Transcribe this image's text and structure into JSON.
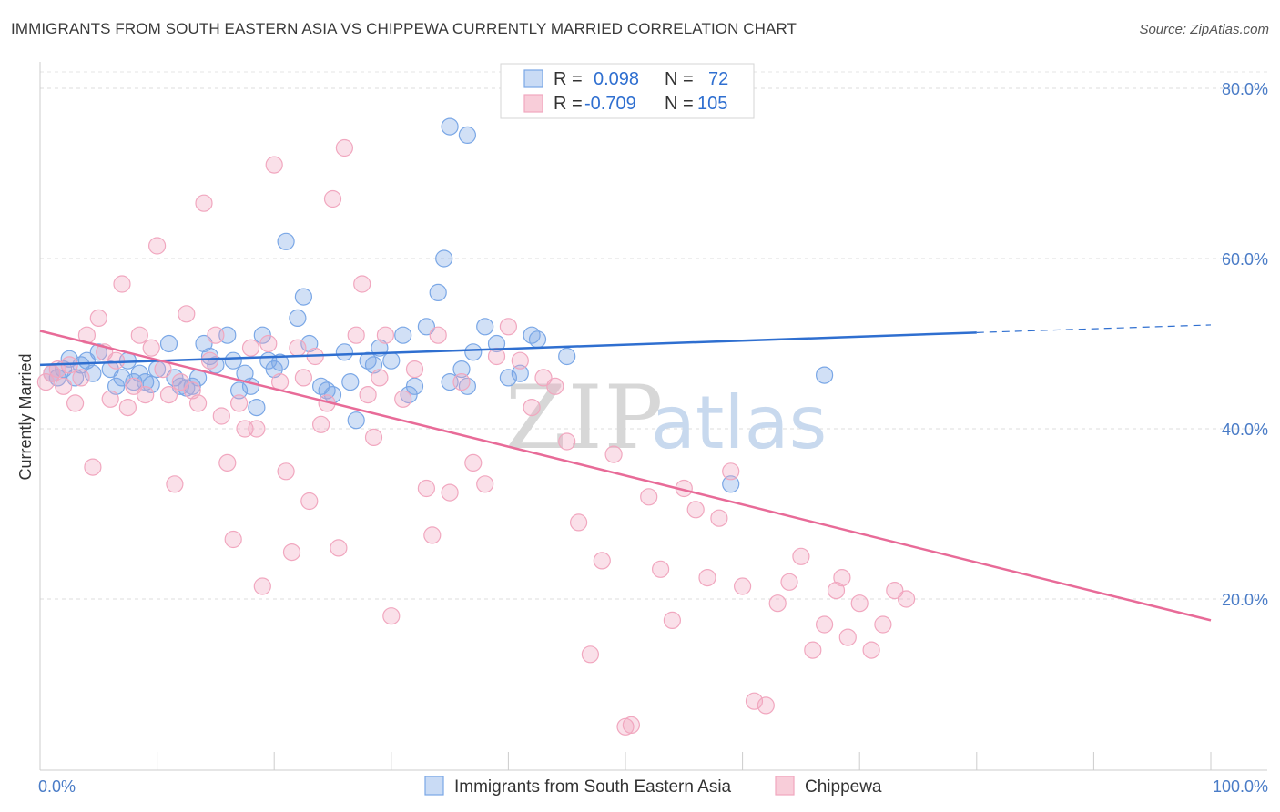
{
  "title": "IMMIGRANTS FROM SOUTH EASTERN ASIA VS CHIPPEWA CURRENTLY MARRIED CORRELATION CHART",
  "source": "Source: ZipAtlas.com",
  "watermark": {
    "zip": "ZIP",
    "atlas": "atlas"
  },
  "legend": {
    "r_label": "R =",
    "n_label": "N =",
    "rows": [
      {
        "r": "0.098",
        "n": "72"
      },
      {
        "r": "-0.709",
        "n": "105"
      }
    ]
  },
  "chart_data": {
    "type": "scatter",
    "title": "IMMIGRANTS FROM SOUTH EASTERN ASIA VS CHIPPEWA CURRENTLY MARRIED CORRELATION CHART",
    "xlabel": "",
    "ylabel": "Currently Married",
    "xlim": [
      0,
      100
    ],
    "ylim": [
      0,
      85
    ],
    "y_ticks": [
      20,
      40,
      60,
      80
    ],
    "y_tick_labels": [
      "20.0%",
      "40.0%",
      "60.0%",
      "80.0%"
    ],
    "x_tick_labels": [
      "0.0%",
      "100.0%"
    ],
    "grid": true,
    "legend_placement": "top-center",
    "series": [
      {
        "name": "Immigrants from South Eastern Asia",
        "color": "#7aa7e6",
        "line_color": "#2f6fd0",
        "r": 0.098,
        "n": 72,
        "trend": {
          "x0": 0,
          "y0": 47.5,
          "x1": 80,
          "y1": 51.3,
          "dashed_to_x": 100,
          "dashed_to_y": 52.2
        },
        "points": [
          [
            1,
            46.5
          ],
          [
            1.5,
            46
          ],
          [
            2,
            47
          ],
          [
            2.5,
            48.2
          ],
          [
            3,
            46
          ],
          [
            3.5,
            47.5
          ],
          [
            4,
            48
          ],
          [
            4.5,
            46.5
          ],
          [
            5,
            49
          ],
          [
            6,
            47
          ],
          [
            6.5,
            45
          ],
          [
            7,
            46
          ],
          [
            7.5,
            48
          ],
          [
            8,
            45.5
          ],
          [
            8.5,
            46.5
          ],
          [
            9,
            45.5
          ],
          [
            9.5,
            45.2
          ],
          [
            10,
            47
          ],
          [
            11,
            50
          ],
          [
            11.5,
            46
          ],
          [
            12,
            45
          ],
          [
            12.5,
            44.8
          ],
          [
            13,
            45
          ],
          [
            13.5,
            46
          ],
          [
            14,
            50
          ],
          [
            14.5,
            48.5
          ],
          [
            15,
            47.5
          ],
          [
            16,
            51
          ],
          [
            16.5,
            48
          ],
          [
            17,
            44.5
          ],
          [
            17.5,
            46.5
          ],
          [
            18,
            45
          ],
          [
            18.5,
            42.5
          ],
          [
            19,
            51
          ],
          [
            19.5,
            48
          ],
          [
            20,
            47
          ],
          [
            20.5,
            47.8
          ],
          [
            21,
            62
          ],
          [
            22,
            53
          ],
          [
            22.5,
            55.5
          ],
          [
            23,
            50
          ],
          [
            24,
            45
          ],
          [
            24.5,
            44.5
          ],
          [
            25,
            44
          ],
          [
            26,
            49
          ],
          [
            26.5,
            45.5
          ],
          [
            27,
            41
          ],
          [
            28,
            48
          ],
          [
            28.5,
            47.5
          ],
          [
            29,
            49.5
          ],
          [
            30,
            48
          ],
          [
            31,
            51
          ],
          [
            31.5,
            44
          ],
          [
            32,
            45
          ],
          [
            33,
            52
          ],
          [
            34,
            56
          ],
          [
            34.5,
            60
          ],
          [
            35,
            45.5
          ],
          [
            36,
            47
          ],
          [
            36.5,
            45
          ],
          [
            37,
            49
          ],
          [
            38,
            52
          ],
          [
            39,
            50
          ],
          [
            40,
            46
          ],
          [
            41,
            46.5
          ],
          [
            42,
            51
          ],
          [
            42.5,
            50.5
          ],
          [
            35,
            75.5
          ],
          [
            36.5,
            74.5
          ],
          [
            45,
            48.5
          ],
          [
            59,
            33.5
          ],
          [
            67,
            46.3
          ]
        ]
      },
      {
        "name": "Chippewa",
        "color": "#f1a7bf",
        "line_color": "#e86b98",
        "r": -0.709,
        "n": 105,
        "trend": {
          "x0": 0,
          "y0": 51.5,
          "x1": 100,
          "y1": 17.5
        },
        "points": [
          [
            0.5,
            45.5
          ],
          [
            1,
            46.5
          ],
          [
            1.5,
            47
          ],
          [
            2,
            45
          ],
          [
            2.5,
            47.5
          ],
          [
            3,
            43
          ],
          [
            3.5,
            46
          ],
          [
            4,
            51
          ],
          [
            4.5,
            35.5
          ],
          [
            5,
            53
          ],
          [
            5.5,
            49
          ],
          [
            6,
            43.5
          ],
          [
            6.5,
            48
          ],
          [
            7,
            57
          ],
          [
            7.5,
            42.5
          ],
          [
            8,
            45
          ],
          [
            8.5,
            51
          ],
          [
            9,
            44
          ],
          [
            9.5,
            49.5
          ],
          [
            10,
            61.5
          ],
          [
            10.5,
            47
          ],
          [
            11,
            44
          ],
          [
            11.5,
            33.5
          ],
          [
            12,
            45.5
          ],
          [
            12.5,
            53.5
          ],
          [
            13,
            44.5
          ],
          [
            13.5,
            43
          ],
          [
            14,
            66.5
          ],
          [
            14.5,
            48
          ],
          [
            15,
            51
          ],
          [
            15.5,
            41.5
          ],
          [
            16,
            36
          ],
          [
            16.5,
            27
          ],
          [
            17,
            43
          ],
          [
            17.5,
            40
          ],
          [
            18,
            49.5
          ],
          [
            18.5,
            40
          ],
          [
            19,
            21.5
          ],
          [
            19.5,
            50
          ],
          [
            20,
            71
          ],
          [
            20.5,
            45.5
          ],
          [
            21,
            35
          ],
          [
            21.5,
            25.5
          ],
          [
            22,
            49.5
          ],
          [
            22.5,
            46
          ],
          [
            23,
            31.5
          ],
          [
            23.5,
            48.5
          ],
          [
            24,
            40.5
          ],
          [
            24.5,
            43
          ],
          [
            25,
            67
          ],
          [
            25.5,
            26
          ],
          [
            26,
            73
          ],
          [
            27,
            51
          ],
          [
            27.5,
            57
          ],
          [
            28,
            44
          ],
          [
            28.5,
            39
          ],
          [
            29,
            46
          ],
          [
            29.5,
            51
          ],
          [
            30,
            18
          ],
          [
            31,
            43.5
          ],
          [
            32,
            47
          ],
          [
            33,
            33
          ],
          [
            33.5,
            27.5
          ],
          [
            34,
            51
          ],
          [
            35,
            32.5
          ],
          [
            36,
            45.5
          ],
          [
            37,
            36
          ],
          [
            38,
            33.5
          ],
          [
            39,
            48.5
          ],
          [
            40,
            52
          ],
          [
            41,
            48
          ],
          [
            42,
            42.5
          ],
          [
            43,
            46
          ],
          [
            44,
            45
          ],
          [
            45,
            38.5
          ],
          [
            46,
            29
          ],
          [
            47,
            13.5
          ],
          [
            48,
            24.5
          ],
          [
            49,
            37
          ],
          [
            50,
            5
          ],
          [
            50.5,
            5.2
          ],
          [
            52,
            32
          ],
          [
            53,
            23.5
          ],
          [
            54,
            17.5
          ],
          [
            55,
            33
          ],
          [
            56,
            30.5
          ],
          [
            57,
            22.5
          ],
          [
            58,
            29.5
          ],
          [
            59,
            35
          ],
          [
            60,
            21.5
          ],
          [
            61,
            8
          ],
          [
            62,
            7.5
          ],
          [
            63,
            19.5
          ],
          [
            64,
            22
          ],
          [
            65,
            25
          ],
          [
            66,
            14
          ],
          [
            67,
            17
          ],
          [
            68,
            21
          ],
          [
            68.5,
            22.5
          ],
          [
            69,
            15.5
          ],
          [
            70,
            19.5
          ],
          [
            71,
            14
          ],
          [
            72,
            17
          ],
          [
            73,
            21
          ],
          [
            74,
            20
          ]
        ]
      }
    ]
  }
}
